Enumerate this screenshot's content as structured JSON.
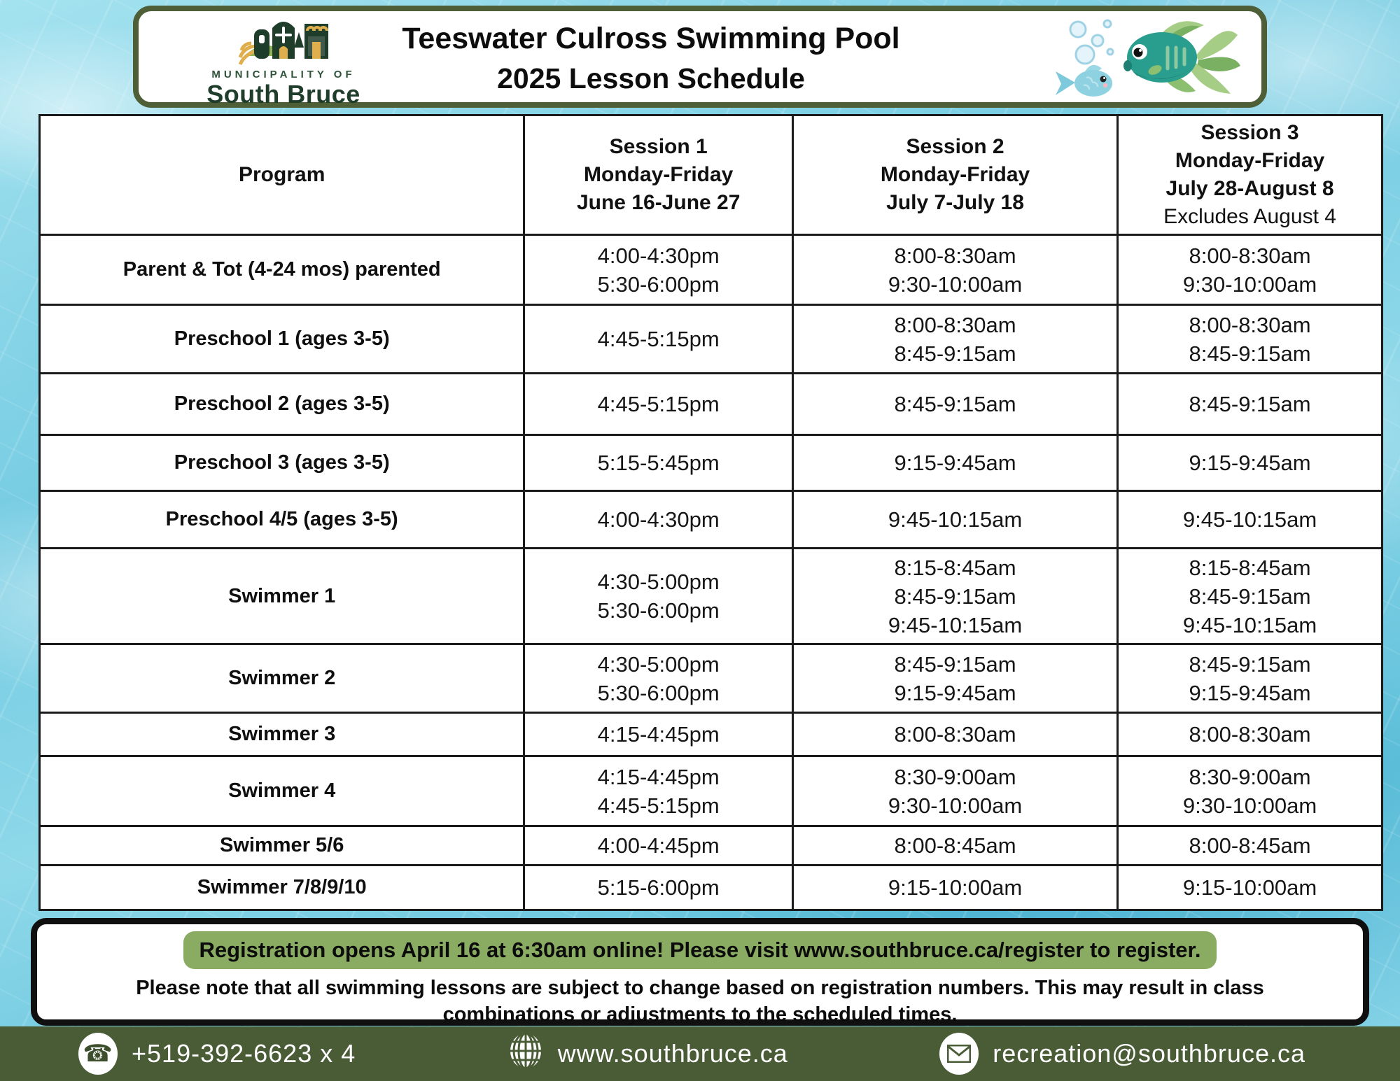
{
  "header": {
    "logo": {
      "top_text": "MUNICIPALITY OF",
      "name": "South Bruce"
    },
    "title_line1": "Teeswater Culross Swimming Pool",
    "title_line2": "2025 Lesson Schedule"
  },
  "table": {
    "columns": [
      {
        "key": "program",
        "label_lines": [
          "Program"
        ]
      },
      {
        "key": "session1",
        "label_lines": [
          "Session 1",
          "Monday-Friday",
          "June 16-June 27"
        ]
      },
      {
        "key": "session2",
        "label_lines": [
          "Session 2",
          "Monday-Friday",
          "July 7-July 18"
        ]
      },
      {
        "key": "session3",
        "label_lines": [
          "Session 3",
          "Monday-Friday",
          "July 28-August 8"
        ],
        "note": "Excludes August 4"
      }
    ],
    "rows": [
      {
        "program": "Parent & Tot  (4-24 mos) parented",
        "session1": [
          "4:00-4:30pm",
          "5:30-6:00pm"
        ],
        "session2": [
          "8:00-8:30am",
          "9:30-10:00am"
        ],
        "session3": [
          "8:00-8:30am",
          "9:30-10:00am"
        ]
      },
      {
        "program": "Preschool 1 (ages 3-5)",
        "session1": [
          "4:45-5:15pm"
        ],
        "session2": [
          "8:00-8:30am",
          "8:45-9:15am"
        ],
        "session3": [
          "8:00-8:30am",
          "8:45-9:15am"
        ]
      },
      {
        "program": "Preschool 2 (ages 3-5)",
        "session1": [
          "4:45-5:15pm"
        ],
        "session2": [
          "8:45-9:15am"
        ],
        "session3": [
          "8:45-9:15am"
        ]
      },
      {
        "program": "Preschool 3 (ages 3-5)",
        "session1": [
          "5:15-5:45pm"
        ],
        "session2": [
          "9:15-9:45am"
        ],
        "session3": [
          "9:15-9:45am"
        ]
      },
      {
        "program": "Preschool 4/5 (ages 3-5)",
        "session1": [
          "4:00-4:30pm"
        ],
        "session2": [
          "9:45-10:15am"
        ],
        "session3": [
          "9:45-10:15am"
        ]
      },
      {
        "program": "Swimmer 1",
        "session1": [
          "4:30-5:00pm",
          "5:30-6:00pm"
        ],
        "session2": [
          "8:15-8:45am",
          "8:45-9:15am",
          "9:45-10:15am"
        ],
        "session3": [
          "8:15-8:45am",
          "8:45-9:15am",
          "9:45-10:15am"
        ]
      },
      {
        "program": "Swimmer 2",
        "session1": [
          "4:30-5:00pm",
          "5:30-6:00pm"
        ],
        "session2": [
          "8:45-9:15am",
          "9:15-9:45am"
        ],
        "session3": [
          "8:45-9:15am",
          "9:15-9:45am"
        ]
      },
      {
        "program": "Swimmer 3",
        "session1": [
          "4:15-4:45pm"
        ],
        "session2": [
          "8:00-8:30am"
        ],
        "session3": [
          "8:00-8:30am"
        ]
      },
      {
        "program": "Swimmer 4",
        "session1": [
          "4:15-4:45pm",
          "4:45-5:15pm"
        ],
        "session2": [
          "8:30-9:00am",
          "9:30-10:00am"
        ],
        "session3": [
          "8:30-9:00am",
          "9:30-10:00am"
        ]
      },
      {
        "program": "Swimmer 5/6",
        "session1": [
          "4:00-4:45pm"
        ],
        "session2": [
          "8:00-8:45am"
        ],
        "session3": [
          "8:00-8:45am"
        ]
      },
      {
        "program": "Swimmer 7/8/9/10",
        "session1": [
          "5:15-6:00pm"
        ],
        "session2": [
          "9:15-10:00am"
        ],
        "session3": [
          "9:15-10:00am"
        ]
      }
    ]
  },
  "notice": {
    "highlight": "Registration opens April 16 at 6:30am online! Please visit www.southbruce.ca/register to register.",
    "note": "Please note that all swimming lessons are subject to change based on registration numbers. This may result in class combinations or adjustments to the scheduled times."
  },
  "footer": {
    "phone": "+519-392-6623 x 4",
    "phone_glyph": "☎",
    "website": "www.southbruce.ca",
    "email": "recreation@southbruce.ca"
  },
  "colors": {
    "border_green": "#4e5f38",
    "footer_green": "#4a5c36",
    "highlight_green": "#8aab62",
    "logo_dark_green": "#1f3d2b",
    "logo_light_green": "#8fb356",
    "logo_gold": "#dfaf4e",
    "water_blue": "#7ccfe5",
    "fish_teal": "#2a9e8e",
    "fish_fin_green": "#a5cd85"
  }
}
